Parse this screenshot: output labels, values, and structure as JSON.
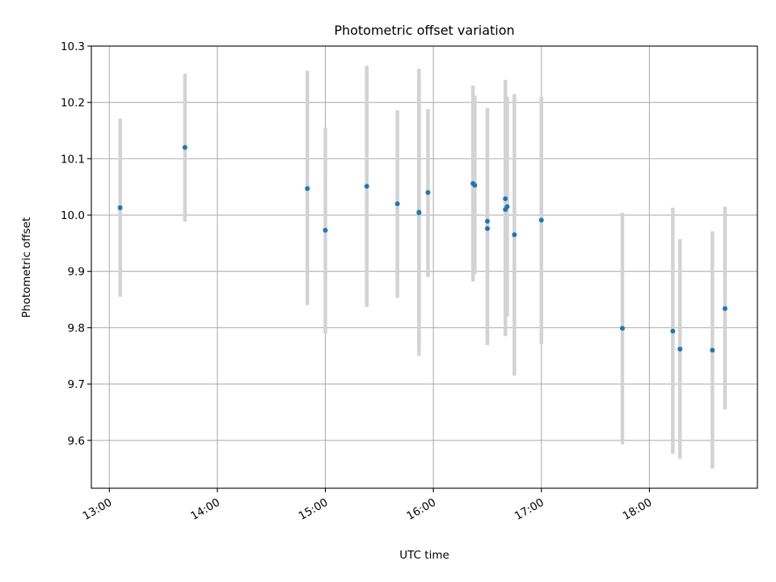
{
  "chart_data": {
    "type": "scatter",
    "title": "Photometric offset variation",
    "xlabel": "UTC time",
    "ylabel": "Photometric offset",
    "x_kind": "time",
    "xlim": [
      "12:50",
      "19:00"
    ],
    "ylim": [
      9.515,
      10.3
    ],
    "x_ticks": [
      "13:00",
      "14:00",
      "15:00",
      "16:00",
      "17:00",
      "18:00"
    ],
    "y_ticks": [
      "9.6",
      "9.7",
      "9.8",
      "9.9",
      "10.0",
      "10.1",
      "10.2",
      "10.3"
    ],
    "grid": true,
    "marker_color": "#1f77b4",
    "errorbar_color": "#d3d3d3",
    "points": [
      {
        "x": "13:06",
        "y": 10.013,
        "ylow": 9.855,
        "yhigh": 10.171
      },
      {
        "x": "13:42",
        "y": 10.12,
        "ylow": 9.988,
        "yhigh": 10.251
      },
      {
        "x": "14:50",
        "y": 10.047,
        "ylow": 9.84,
        "yhigh": 10.256
      },
      {
        "x": "15:00",
        "y": 9.973,
        "ylow": 9.79,
        "yhigh": 10.155
      },
      {
        "x": "15:23",
        "y": 10.051,
        "ylow": 9.837,
        "yhigh": 10.265
      },
      {
        "x": "15:40",
        "y": 10.02,
        "ylow": 9.853,
        "yhigh": 10.186
      },
      {
        "x": "15:52",
        "y": 10.005,
        "ylow": 9.75,
        "yhigh": 10.26
      },
      {
        "x": "15:52",
        "y": 10.004,
        "ylow": 9.77,
        "yhigh": 10.24
      },
      {
        "x": "15:57",
        "y": 10.04,
        "ylow": 9.89,
        "yhigh": 10.188
      },
      {
        "x": "16:22",
        "y": 10.056,
        "ylow": 9.882,
        "yhigh": 10.23
      },
      {
        "x": "16:23",
        "y": 10.053,
        "ylow": 9.895,
        "yhigh": 10.212
      },
      {
        "x": "16:30",
        "y": 9.989,
        "ylow": 9.79,
        "yhigh": 10.19
      },
      {
        "x": "16:30",
        "y": 9.976,
        "ylow": 9.769,
        "yhigh": 10.184
      },
      {
        "x": "16:40",
        "y": 10.029,
        "ylow": 9.818,
        "yhigh": 10.24
      },
      {
        "x": "16:40",
        "y": 10.01,
        "ylow": 9.785,
        "yhigh": 10.235
      },
      {
        "x": "16:41",
        "y": 10.015,
        "ylow": 9.82,
        "yhigh": 10.21
      },
      {
        "x": "16:45",
        "y": 9.965,
        "ylow": 9.715,
        "yhigh": 10.215
      },
      {
        "x": "17:00",
        "y": 9.991,
        "ylow": 9.771,
        "yhigh": 10.21
      },
      {
        "x": "17:45",
        "y": 9.799,
        "ylow": 9.593,
        "yhigh": 10.004
      },
      {
        "x": "18:13",
        "y": 9.794,
        "ylow": 9.576,
        "yhigh": 10.013
      },
      {
        "x": "18:17",
        "y": 9.762,
        "ylow": 9.567,
        "yhigh": 9.957
      },
      {
        "x": "18:35",
        "y": 9.76,
        "ylow": 9.55,
        "yhigh": 9.971
      },
      {
        "x": "18:42",
        "y": 9.834,
        "ylow": 9.655,
        "yhigh": 10.015
      }
    ]
  }
}
